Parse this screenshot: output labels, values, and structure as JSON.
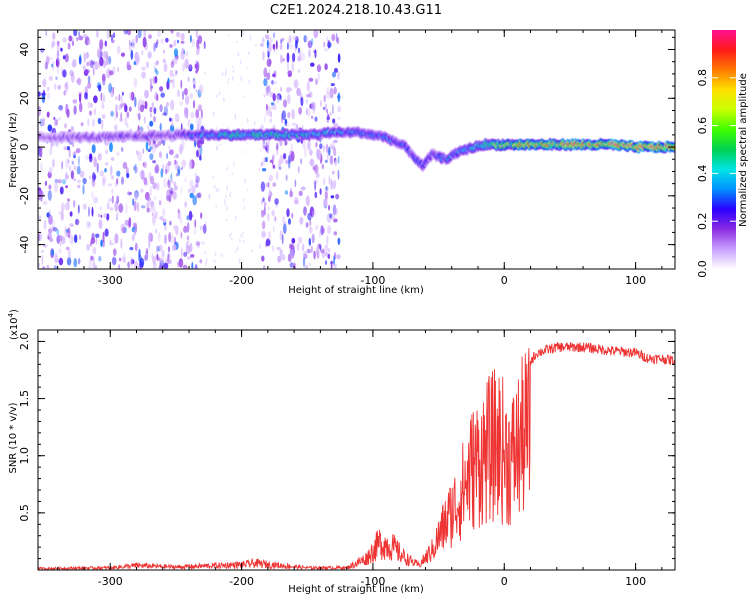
{
  "title": "C2E1.2024.218.10.43.G11",
  "chart_data": [
    {
      "type": "heatmap",
      "xlabel": "Height of straight line (km)",
      "ylabel": "Frequency (Hz)",
      "xlim": [
        -355,
        130
      ],
      "ylim": [
        -50,
        48
      ],
      "x_ticks": [
        -300,
        -200,
        -100,
        0,
        100
      ],
      "x_tick_labels": [
        "-300",
        "-200",
        "-100",
        "0",
        "100"
      ],
      "y_ticks": [
        -40,
        -20,
        0,
        20,
        40
      ],
      "y_tick_labels": [
        "-40",
        "-20",
        "0",
        "20",
        "40"
      ],
      "colorbar": {
        "label": "Normalized spectral amplitude",
        "range": [
          0.0,
          1.0
        ],
        "ticks": [
          0.0,
          0.2,
          0.4,
          0.6,
          0.8
        ],
        "tick_labels": [
          "0.0",
          "0.2",
          "0.4",
          "0.6",
          "0.8"
        ],
        "colors": [
          "#ffffff",
          "#c9a0ff",
          "#8a2be2",
          "#2a00ff",
          "#0090ff",
          "#00e5e5",
          "#00d050",
          "#40ff00",
          "#c8ff00",
          "#ffe000",
          "#ff7a00",
          "#ff1a1a",
          "#ff1090"
        ]
      },
      "ridge": {
        "x": [
          -355,
          -300,
          -250,
          -230,
          -200,
          -150,
          -130,
          -110,
          -90,
          -75,
          -62,
          -55,
          -45,
          -30,
          -15,
          0,
          20,
          50,
          80,
          100,
          130
        ],
        "frequency": [
          4,
          4,
          5,
          5,
          5,
          5,
          6,
          6,
          4,
          0,
          -8,
          -3,
          -5,
          -1,
          1,
          1,
          1,
          1,
          1,
          0,
          0
        ],
        "amplitude": [
          0.15,
          0.2,
          0.2,
          0.35,
          0.45,
          0.4,
          0.35,
          0.3,
          0.3,
          0.25,
          0.25,
          0.25,
          0.3,
          0.35,
          0.45,
          0.6,
          0.7,
          0.75,
          0.8,
          0.85,
          0.85
        ]
      },
      "scatter_regions_x": [
        [
          -355,
          -228
        ],
        [
          -185,
          -125
        ]
      ]
    },
    {
      "type": "line",
      "xlabel": "Height of straight line (km)",
      "ylabel": "SNR (10 * v/v)",
      "y_exponent_label": "(x10",
      "y_exponent_power": "4",
      "y_exponent_close": ")",
      "xlim": [
        -355,
        130
      ],
      "ylim": [
        0,
        21000
      ],
      "x_ticks": [
        -300,
        -200,
        -100,
        0,
        100
      ],
      "x_tick_labels": [
        "-300",
        "-200",
        "-100",
        "0",
        "100"
      ],
      "y_ticks": [
        5000,
        10000,
        15000,
        20000
      ],
      "y_tick_labels": [
        "0.5",
        "1.0",
        "1.5",
        "2.0"
      ],
      "color": "#ee3333",
      "series_envelope": {
        "x": [
          -355,
          -300,
          -280,
          -250,
          -200,
          -190,
          -150,
          -120,
          -105,
          -95,
          -85,
          -75,
          -65,
          -55,
          -45,
          -35,
          -25,
          -15,
          -5,
          5,
          15,
          25,
          40,
          60,
          80,
          100,
          110,
          120,
          130
        ],
        "y": [
          200,
          300,
          600,
          400,
          700,
          900,
          300,
          300,
          1500,
          3500,
          3000,
          1500,
          600,
          2500,
          6000,
          9000,
          13000,
          15000,
          16500,
          14000,
          17500,
          19000,
          19500,
          19500,
          19200,
          19000,
          18500,
          18500,
          18300
        ]
      }
    }
  ]
}
